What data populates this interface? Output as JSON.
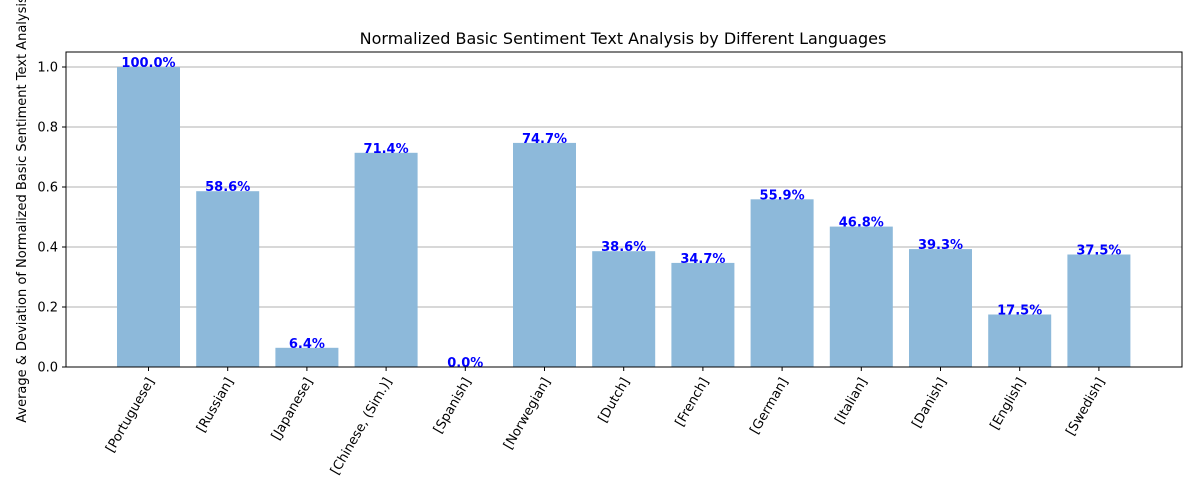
{
  "chart_data": {
    "type": "bar",
    "title": "Normalized Basic Sentiment Text Analysis by Different Languages",
    "xlabel": "",
    "ylabel": "Average & Deviation of Normalized Basic Sentiment Text Analysis",
    "categories": [
      "[Portuguese]",
      "[Russian]",
      "[Japanese]",
      "[Chinese, (Sim.)]",
      "[Spanish]",
      "[Norwegian]",
      "[Dutch]",
      "[French]",
      "[German]",
      "[Italian]",
      "[Danish]",
      "[English]",
      "[Swedish]"
    ],
    "values": [
      1.0,
      0.586,
      0.064,
      0.714,
      0.0,
      0.747,
      0.386,
      0.347,
      0.559,
      0.468,
      0.393,
      0.175,
      0.375
    ],
    "data_labels": [
      "100.0%",
      "58.6%",
      "6.4%",
      "71.4%",
      "0.0%",
      "74.7%",
      "38.6%",
      "34.7%",
      "55.9%",
      "46.8%",
      "39.3%",
      "17.5%",
      "37.5%"
    ],
    "ylim": [
      0,
      1.05
    ],
    "yticks": [
      "0.0",
      "0.2",
      "0.4",
      "0.6",
      "0.8",
      "1.0"
    ],
    "grid": "horizontal",
    "colors": {
      "bar": "#8db9da",
      "label": "#0000ff",
      "grid": "#b0b0b0",
      "axis": "#000000"
    }
  }
}
